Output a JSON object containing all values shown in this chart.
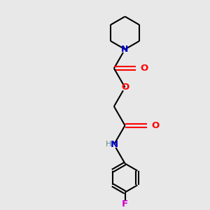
{
  "bg_color": "#e8e8e8",
  "bond_color": "#000000",
  "N_color": "#0000cd",
  "O_color": "#ff0000",
  "F_color": "#cc00cc",
  "H_color": "#5c8a8a",
  "line_width": 1.5,
  "figsize": [
    3.0,
    3.0
  ],
  "dpi": 100,
  "xlim": [
    0,
    10
  ],
  "ylim": [
    0,
    10
  ]
}
